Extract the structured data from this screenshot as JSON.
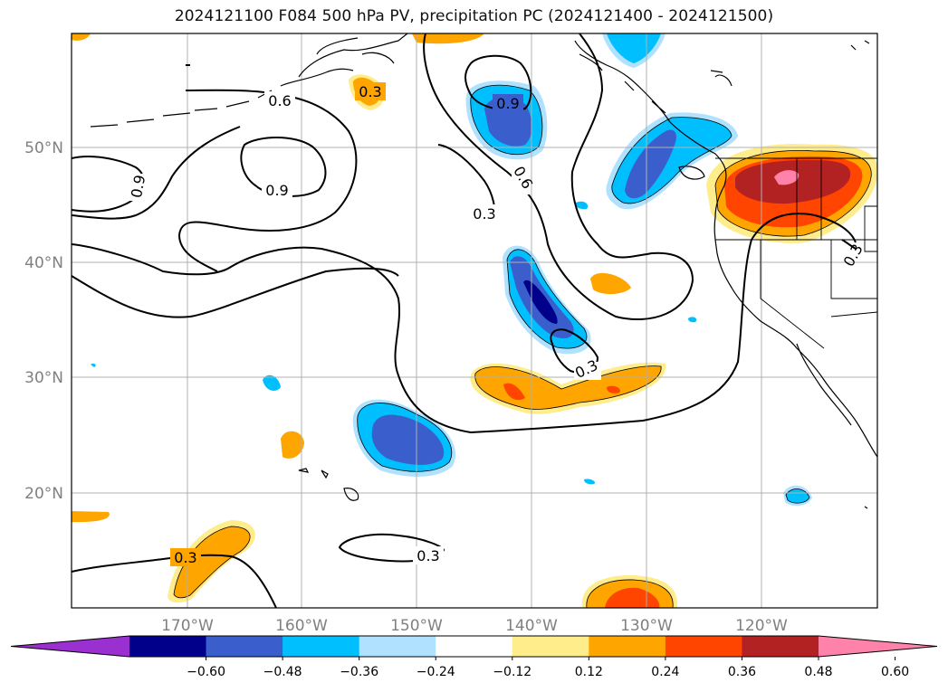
{
  "title": "2024121100 F084 500 hPa PV, precipitation PC (2024121400 - 2024121500)",
  "lon_ticks": [
    "170°W",
    "160°W",
    "150°W",
    "140°W",
    "130°W",
    "120°W"
  ],
  "lat_ticks": [
    "50°N",
    "40°N",
    "30°N",
    "20°N"
  ],
  "contour_labels": [
    "0.3",
    "0.6",
    "0.9",
    "0.9",
    "0.9",
    "0.6",
    "0.3",
    "0.3",
    "0.3",
    "0.3",
    "0.3"
  ],
  "colorbar": {
    "tick_labels": [
      "−0.60",
      "−0.48",
      "−0.36",
      "−0.24",
      "−0.12",
      "0.12",
      "0.24",
      "0.36",
      "0.48",
      "0.60"
    ],
    "colors": [
      "#9b30d0",
      "#00008b",
      "#3a5fcd",
      "#00bfff",
      "#b0e2ff",
      "#ffffff",
      "#ffec8b",
      "#ffa500",
      "#ff4500",
      "#b22222",
      "#ff82ab"
    ]
  },
  "colors": {
    "gridline": "#b0b0b0",
    "coastline": "#000000",
    "contour": "#000000"
  }
}
